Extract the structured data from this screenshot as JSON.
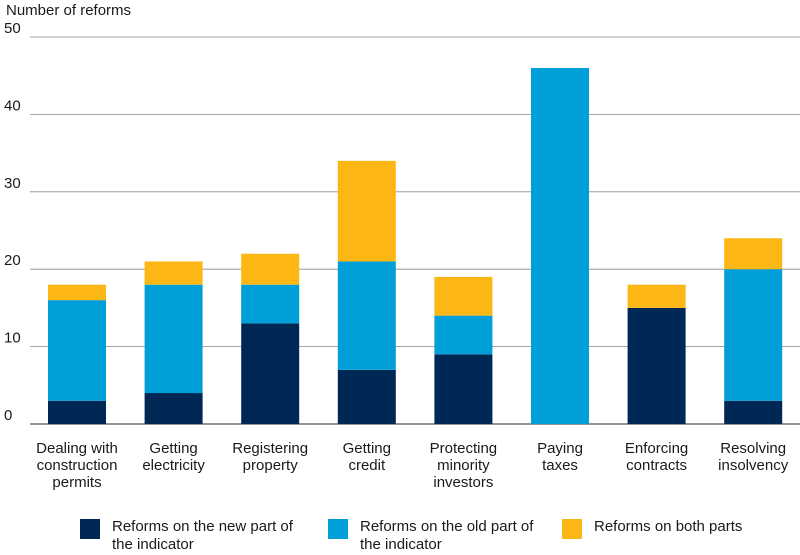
{
  "chart_data": {
    "type": "bar",
    "stacked": true,
    "ylabel": "Number of reforms",
    "ylim": [
      0,
      50
    ],
    "yticks": [
      0,
      10,
      20,
      30,
      40,
      50
    ],
    "grid": true,
    "legend_position": "bottom",
    "categories": [
      "Dealing with construction permits",
      "Getting electricity",
      "Registering property",
      "Getting credit",
      "Protecting minority investors",
      "Paying taxes",
      "Enforcing contracts",
      "Resolving insolvency"
    ],
    "category_lines": [
      "Dealing with\nconstruction\npermits",
      "Getting\nelectricity",
      "Registering\nproperty",
      "Getting\ncredit",
      "Protecting\nminority\ninvestors",
      "Paying\ntaxes",
      "Enforcing\ncontracts",
      "Resolving\ninsolvency"
    ],
    "series": [
      {
        "name": "Reforms on the new part of the indicator",
        "color": "#002855",
        "values": [
          3,
          4,
          13,
          7,
          9,
          0,
          15,
          3
        ]
      },
      {
        "name": "Reforms on the old part of the indicator",
        "color": "#009fda",
        "values": [
          13,
          14,
          5,
          14,
          5,
          46,
          0,
          17
        ]
      },
      {
        "name": "Reforms on both parts",
        "color": "#fdb714",
        "values": [
          2,
          3,
          4,
          13,
          5,
          0,
          3,
          4
        ]
      }
    ]
  }
}
